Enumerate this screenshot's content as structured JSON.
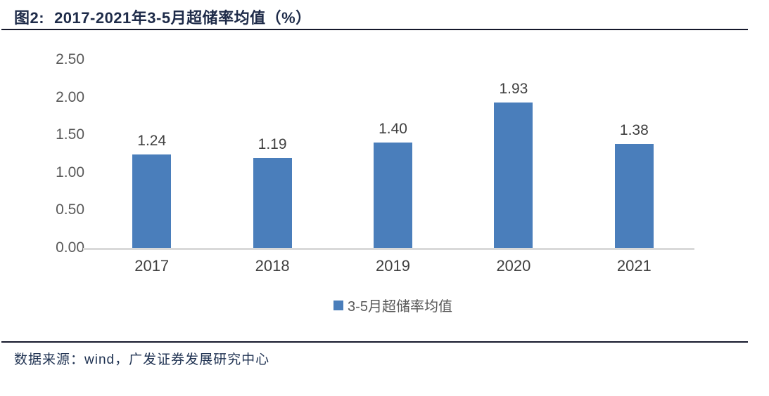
{
  "header": {
    "figure_label": "图2:",
    "title": "2017-2021年3-5月超储率均值（%）"
  },
  "chart_data": {
    "type": "bar",
    "categories": [
      "2017",
      "2018",
      "2019",
      "2020",
      "2021"
    ],
    "values": [
      1.24,
      1.19,
      1.4,
      1.93,
      1.38
    ],
    "value_labels": [
      "1.24",
      "1.19",
      "1.40",
      "1.93",
      "1.38"
    ],
    "yticks": [
      "2.50",
      "2.00",
      "1.50",
      "1.00",
      "0.50",
      "0.00"
    ],
    "ylim": [
      0,
      2.5
    ],
    "title": "图2: 2017-2021年3-5月超储率均值（%）",
    "xlabel": "",
    "ylabel": "",
    "legend": "3-5月超储率均值",
    "legend_position": "bottom",
    "grid": false
  },
  "footer": {
    "source": "数据来源：wind，广发证券发展研究中心"
  },
  "colors": {
    "bar": "#4a7ebb",
    "title_text": "#1e2b49",
    "source_text": "#1e3151",
    "rule": "#15182b",
    "axis_line": "#d9d9d9",
    "tick_gray": "#595959",
    "label_gray": "#404040"
  }
}
